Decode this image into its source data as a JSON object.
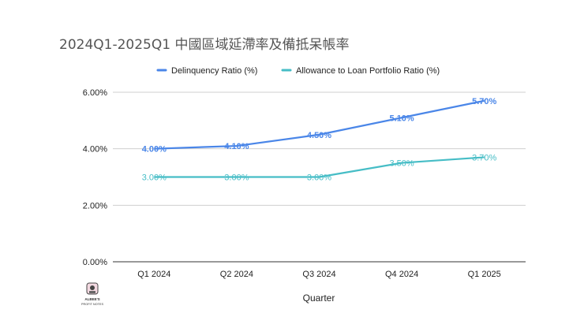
{
  "chart_data": {
    "type": "line",
    "title": "2024Q1-2025Q1 中國區域延滯率及備抵呆帳率",
    "xlabel": "Quarter",
    "ylabel": "",
    "categories": [
      "Q1 2024",
      "Q2 2024",
      "Q3 2024",
      "Q4 2024",
      "Q1 2025"
    ],
    "ylim": [
      0,
      6
    ],
    "yticks": [
      0,
      2,
      4,
      6
    ],
    "ytick_labels": [
      "0.00%",
      "2.00%",
      "4.00%",
      "6.00%"
    ],
    "grid": true,
    "legend_position": "top",
    "series": [
      {
        "name": "Delinquency Ratio (%)",
        "color": "#4a86e8",
        "values": [
          4.0,
          4.1,
          4.5,
          5.1,
          5.7
        ],
        "labels": [
          "4.00%",
          "4.10%",
          "4.50%",
          "5.10%",
          "5.70%"
        ]
      },
      {
        "name": "Allowance to Loan Portfolio Ratio (%)",
        "color": "#46bdc6",
        "values": [
          3.0,
          3.0,
          3.0,
          3.5,
          3.7
        ],
        "labels": [
          "3.00%",
          "3.00%",
          "3.00%",
          "3.50%",
          "3.70%"
        ]
      }
    ]
  },
  "watermark": {
    "text_line1": "ALBEE'S",
    "text_line2": "PROFIT NOTES"
  }
}
